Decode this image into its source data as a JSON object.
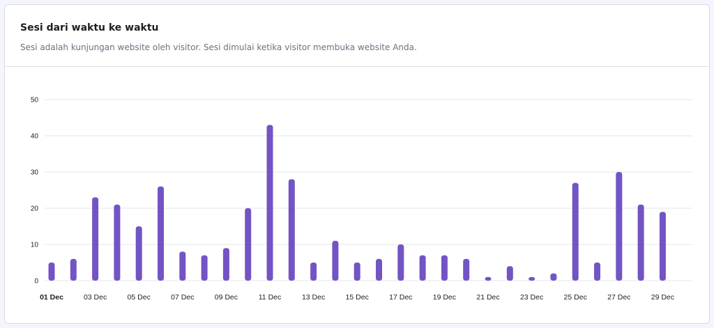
{
  "card": {
    "title": "Sesi dari waktu ke waktu",
    "subtitle": "Sesi adalah kunjungan website oleh visitor. Sesi dimulai ketika visitor membuka website Anda."
  },
  "colors": {
    "bar": "#7354c4",
    "grid": "#e3e4ea",
    "tick_label": "#1d1e20"
  },
  "chart_data": {
    "type": "bar",
    "title": "",
    "xlabel": "",
    "ylabel": "",
    "ylim": [
      0,
      50
    ],
    "yticks": [
      0,
      10,
      20,
      30,
      40,
      50
    ],
    "grid": true,
    "legend": "none",
    "categories": [
      "01 Dec",
      "02 Dec",
      "03 Dec",
      "04 Dec",
      "05 Dec",
      "06 Dec",
      "07 Dec",
      "08 Dec",
      "09 Dec",
      "10 Dec",
      "11 Dec",
      "12 Dec",
      "13 Dec",
      "14 Dec",
      "15 Dec",
      "16 Dec",
      "17 Dec",
      "18 Dec",
      "19 Dec",
      "20 Dec",
      "21 Dec",
      "22 Dec",
      "23 Dec",
      "24 Dec",
      "25 Dec",
      "26 Dec",
      "27 Dec",
      "28 Dec",
      "29 Dec"
    ],
    "visible_tick_labels": [
      "01 Dec",
      "03 Dec",
      "05 Dec",
      "07 Dec",
      "09 Dec",
      "11 Dec",
      "13 Dec",
      "15 Dec",
      "17 Dec",
      "19 Dec",
      "21 Dec",
      "23 Dec",
      "25 Dec",
      "27 Dec",
      "29 Dec"
    ],
    "values": [
      5,
      6,
      23,
      21,
      15,
      26,
      8,
      7,
      9,
      20,
      43,
      28,
      5,
      11,
      5,
      6,
      10,
      7,
      7,
      6,
      1,
      4,
      1,
      2,
      27,
      5,
      30,
      21,
      19
    ]
  }
}
